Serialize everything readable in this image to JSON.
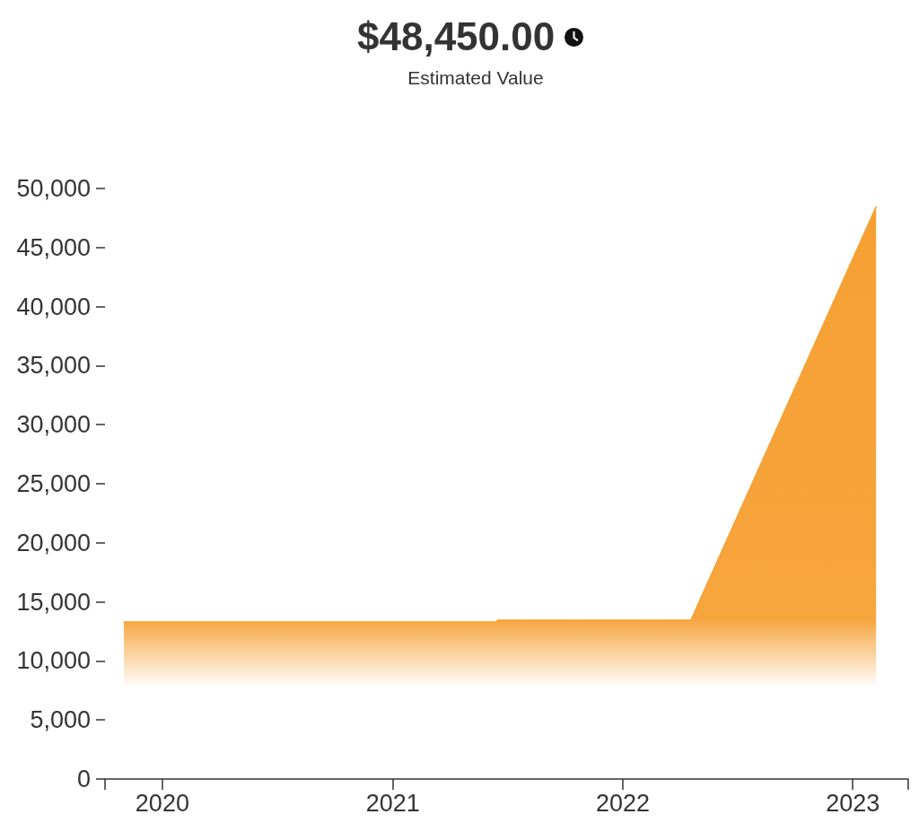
{
  "chart_data": {
    "type": "area",
    "title": "$48,450.00",
    "subtitle": "Estimated Value",
    "x": [
      "2019-11-01",
      "2021-06-15",
      "2021-06-16",
      "2022-04-19",
      "2023-02-07"
    ],
    "values": [
      13300,
      13300,
      13450,
      13450,
      48450
    ],
    "color": "#f6a033",
    "xlim": [
      "2019-10-02",
      "2023-03-30"
    ],
    "xticks": [
      {
        "value": "2019-10-02",
        "label": null
      },
      "2020",
      "2021",
      "2022",
      "2023",
      {
        "value": "2023-03-30",
        "label": null
      }
    ],
    "ylim": [
      0,
      50000
    ],
    "yticks": [
      0,
      {
        "value": 5000,
        "label": "5,000"
      },
      {
        "value": 10000,
        "label": "10,000"
      },
      {
        "value": 15000,
        "label": "15,000"
      },
      {
        "value": 20000,
        "label": "20,000"
      },
      {
        "value": 25000,
        "label": "25,000"
      },
      {
        "value": 30000,
        "label": "30,000"
      },
      {
        "value": 35000,
        "label": "35,000"
      },
      {
        "value": 40000,
        "label": "40,000"
      },
      {
        "value": 45000,
        "label": "45,000"
      },
      {
        "value": 50000,
        "label": "50,000"
      }
    ]
  }
}
